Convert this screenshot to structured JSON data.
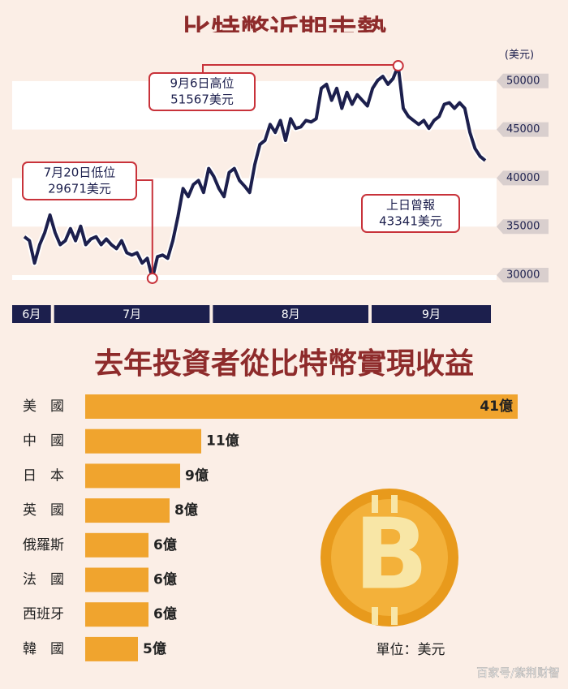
{
  "chart_data": [
    {
      "type": "line",
      "title": "比特幣近期走勢",
      "y_unit": "(美元)",
      "ylim": [
        29500,
        55000
      ],
      "yticks": [
        30000,
        35000,
        40000,
        45000,
        50000
      ],
      "color": "#1c1f4d",
      "months": [
        {
          "label": "6月",
          "values": [
            33960,
            33550,
            31240,
            33140,
            34380,
            36200
          ]
        },
        {
          "label": "7月",
          "values": [
            34380,
            33140,
            33550,
            34790,
            33550,
            35040,
            33140,
            33720,
            33960,
            33140,
            33720,
            33140,
            32730,
            33550,
            32310,
            32070,
            32310,
            31240,
            31730,
            29671,
            31900,
            32070,
            31730,
            33550,
            36030,
            38920,
            38090,
            39330,
            39750,
            38510,
            40990
          ]
        },
        {
          "label": "8月",
          "values": [
            40160,
            38920,
            38090,
            40570,
            40990,
            39750,
            39170,
            38510,
            41400,
            43460,
            43880,
            45530,
            44700,
            45940,
            43880,
            46110,
            45120,
            45280,
            45940,
            45780,
            46110,
            49250,
            49660,
            48010,
            49250,
            47180,
            48830,
            47600,
            48590,
            48010,
            47430
          ]
        },
        {
          "label": "9月",
          "values": [
            49250,
            50070,
            50480,
            49660,
            50240,
            51567,
            47180,
            46350,
            45940,
            45530,
            45940,
            45120,
            45940,
            46350,
            47600,
            47760,
            47180,
            47760,
            47180,
            44700,
            43050,
            42230,
            41810
          ]
        }
      ],
      "annotations": [
        {
          "lines": [
            "7月20日低位",
            "29671美元"
          ]
        },
        {
          "lines": [
            "9月6日高位",
            "51567美元"
          ]
        },
        {
          "lines": [
            "上日曾報",
            "43341美元"
          ]
        }
      ]
    },
    {
      "type": "bar",
      "title": "去年投資者從比特幣實現收益",
      "categories": [
        "美　國",
        "中　國",
        "日　本",
        "英　國",
        "俄羅斯",
        "法　國",
        "西班牙",
        "韓　國"
      ],
      "values": [
        41,
        11,
        9,
        8,
        6,
        6,
        6,
        5
      ],
      "value_labels": [
        "41億",
        "11億",
        "9億",
        "8億",
        "6億",
        "6億",
        "6億",
        "5億"
      ],
      "color": "#f0a42e",
      "note": "單位：美元"
    }
  ],
  "watermark": "百家号/紫荆财智"
}
